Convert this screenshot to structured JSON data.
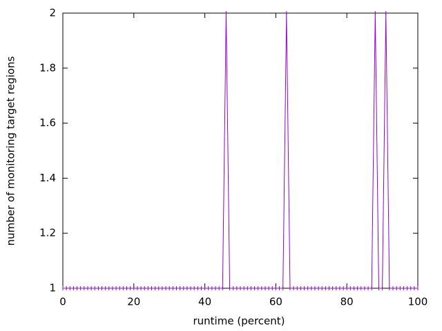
{
  "chart_data": {
    "type": "line",
    "xlabel": "runtime (percent)",
    "ylabel": "number of monitoring target regions",
    "x": [
      0,
      1,
      2,
      3,
      4,
      5,
      6,
      7,
      8,
      9,
      10,
      11,
      12,
      13,
      14,
      15,
      16,
      17,
      18,
      19,
      20,
      21,
      22,
      23,
      24,
      25,
      26,
      27,
      28,
      29,
      30,
      31,
      32,
      33,
      34,
      35,
      36,
      37,
      38,
      39,
      40,
      41,
      42,
      43,
      44,
      45,
      46,
      47,
      48,
      49,
      50,
      51,
      52,
      53,
      54,
      55,
      56,
      57,
      58,
      59,
      60,
      61,
      62,
      63,
      64,
      65,
      66,
      67,
      68,
      69,
      70,
      71,
      72,
      73,
      74,
      75,
      76,
      77,
      78,
      79,
      80,
      81,
      82,
      83,
      84,
      85,
      86,
      87,
      88,
      89,
      90,
      91,
      92,
      93,
      94,
      95,
      96,
      97,
      98,
      99,
      100
    ],
    "series": [
      {
        "color": "#9400d3",
        "values": [
          1,
          1,
          1,
          1,
          1,
          1,
          1,
          1,
          1,
          1,
          1,
          1,
          1,
          1,
          1,
          1,
          1,
          1,
          1,
          1,
          1,
          1,
          1,
          1,
          1,
          1,
          1,
          1,
          1,
          1,
          1,
          1,
          1,
          1,
          1,
          1,
          1,
          1,
          1,
          1,
          1,
          1,
          1,
          1,
          1,
          1,
          2,
          1,
          1,
          1,
          1,
          1,
          1,
          1,
          1,
          1,
          1,
          1,
          1,
          1,
          1,
          1,
          1,
          2,
          1,
          1,
          1,
          1,
          1,
          1,
          1,
          1,
          1,
          1,
          1,
          1,
          1,
          1,
          1,
          1,
          1,
          1,
          1,
          1,
          1,
          1,
          1,
          1,
          2,
          1,
          1,
          2,
          1,
          1,
          1,
          1,
          1,
          1,
          1,
          1,
          1
        ]
      }
    ],
    "xlim": [
      0,
      100
    ],
    "xticks": [
      0,
      20,
      40,
      60,
      80,
      100
    ],
    "ylim": [
      1,
      2
    ],
    "yticks": [
      1,
      1.2,
      1.4,
      1.6,
      1.8,
      2
    ],
    "grid": false
  }
}
